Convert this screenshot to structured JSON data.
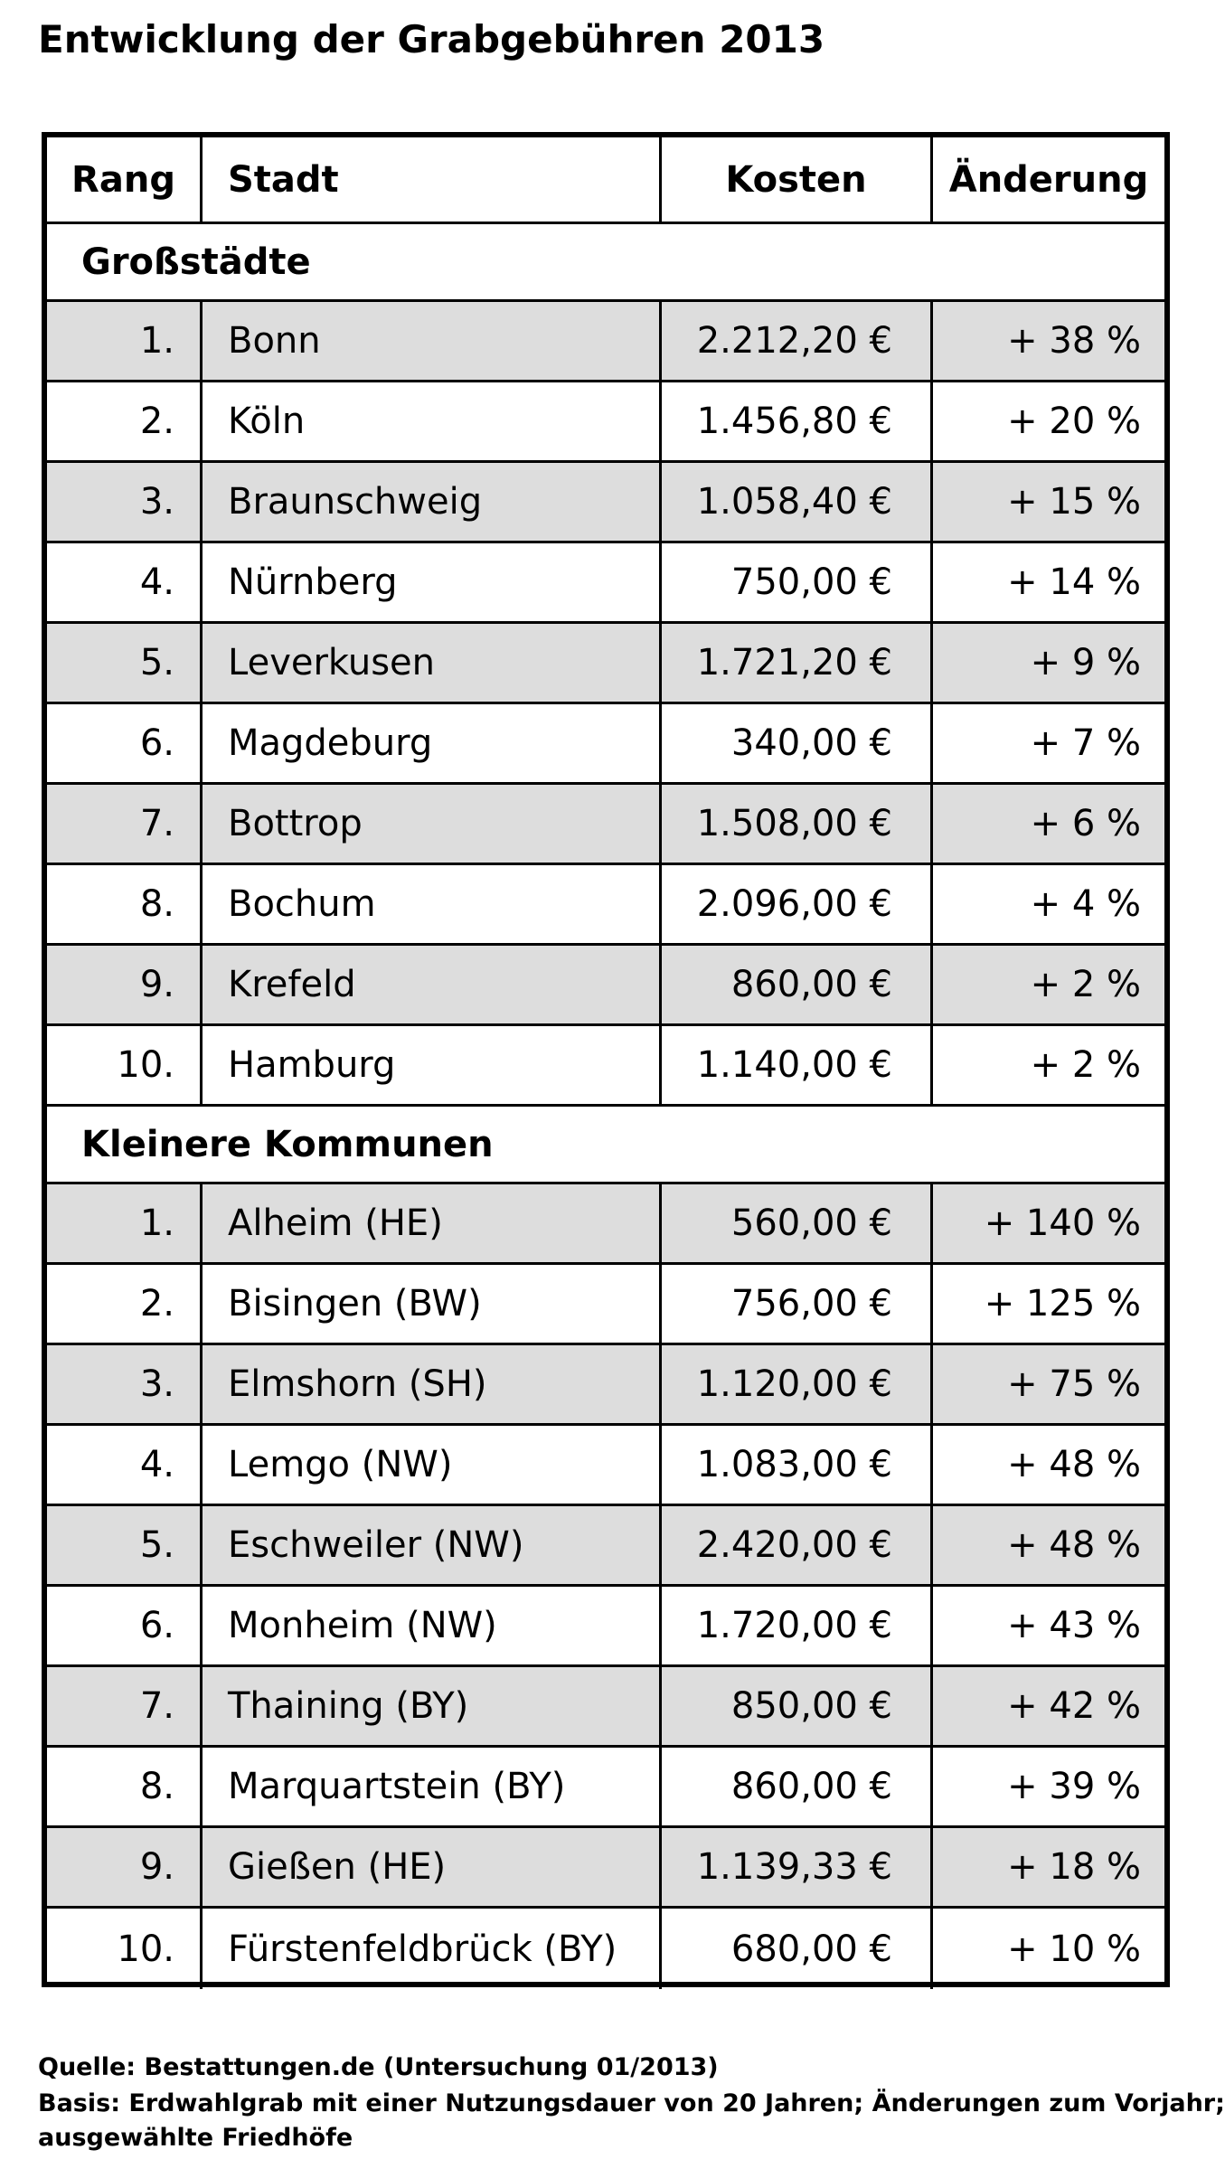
{
  "chart_data": {
    "type": "table",
    "title": "Entwicklung der Grabgebühren 2013",
    "columns": [
      "Rang",
      "Stadt",
      "Kosten",
      "Änderung"
    ],
    "sections": [
      {
        "name": "Großstädte",
        "rows": [
          {
            "rank": "1.",
            "city": "Bonn",
            "cost": "2.212,20 €",
            "change": "+ 38 %"
          },
          {
            "rank": "2.",
            "city": "Köln",
            "cost": "1.456,80 €",
            "change": "+ 20 %"
          },
          {
            "rank": "3.",
            "city": "Braunschweig",
            "cost": "1.058,40 €",
            "change": "+ 15 %"
          },
          {
            "rank": "4.",
            "city": "Nürnberg",
            "cost": "750,00 €",
            "change": "+ 14 %"
          },
          {
            "rank": "5.",
            "city": "Leverkusen",
            "cost": "1.721,20 €",
            "change": "+ 9 %"
          },
          {
            "rank": "6.",
            "city": "Magdeburg",
            "cost": "340,00 €",
            "change": "+ 7 %"
          },
          {
            "rank": "7.",
            "city": "Bottrop",
            "cost": "1.508,00 €",
            "change": "+ 6 %"
          },
          {
            "rank": "8.",
            "city": "Bochum",
            "cost": "2.096,00 €",
            "change": "+ 4 %"
          },
          {
            "rank": "9.",
            "city": "Krefeld",
            "cost": "860,00 €",
            "change": "+ 2 %"
          },
          {
            "rank": "10.",
            "city": "Hamburg",
            "cost": "1.140,00 €",
            "change": "+ 2 %"
          }
        ]
      },
      {
        "name": "Kleinere Kommunen",
        "rows": [
          {
            "rank": "1.",
            "city": "Alheim (HE)",
            "cost": "560,00 €",
            "change": "+ 140 %"
          },
          {
            "rank": "2.",
            "city": "Bisingen (BW)",
            "cost": "756,00 €",
            "change": "+ 125 %"
          },
          {
            "rank": "3.",
            "city": "Elmshorn (SH)",
            "cost": "1.120,00 €",
            "change": "+ 75 %"
          },
          {
            "rank": "4.",
            "city": "Lemgo (NW)",
            "cost": "1.083,00 €",
            "change": "+ 48 %"
          },
          {
            "rank": "5.",
            "city": "Eschweiler (NW)",
            "cost": "2.420,00 €",
            "change": "+ 48 %"
          },
          {
            "rank": "6.",
            "city": "Monheim (NW)",
            "cost": "1.720,00 €",
            "change": "+ 43 %"
          },
          {
            "rank": "7.",
            "city": "Thaining (BY)",
            "cost": "850,00 €",
            "change": "+ 42 %"
          },
          {
            "rank": "8.",
            "city": "Marquartstein (BY)",
            "cost": "860,00 €",
            "change": "+ 39 %"
          },
          {
            "rank": "9.",
            "city": "Gießen (HE)",
            "cost": "1.139,33 €",
            "change": "+ 18 %"
          },
          {
            "rank": "10.",
            "city": "Fürstenfeldbrück (BY)",
            "cost": "680,00 €",
            "change": "+ 10 %"
          }
        ]
      }
    ],
    "footnotes": [
      "Quelle: Bestattungen.de (Untersuchung 01/2013)",
      "Basis: Erdwahlgrab mit einer Nutzungsdauer von 20 Jahren; Änderungen zum Vorjahr;",
      "ausgewählte Friedhöfe"
    ]
  }
}
